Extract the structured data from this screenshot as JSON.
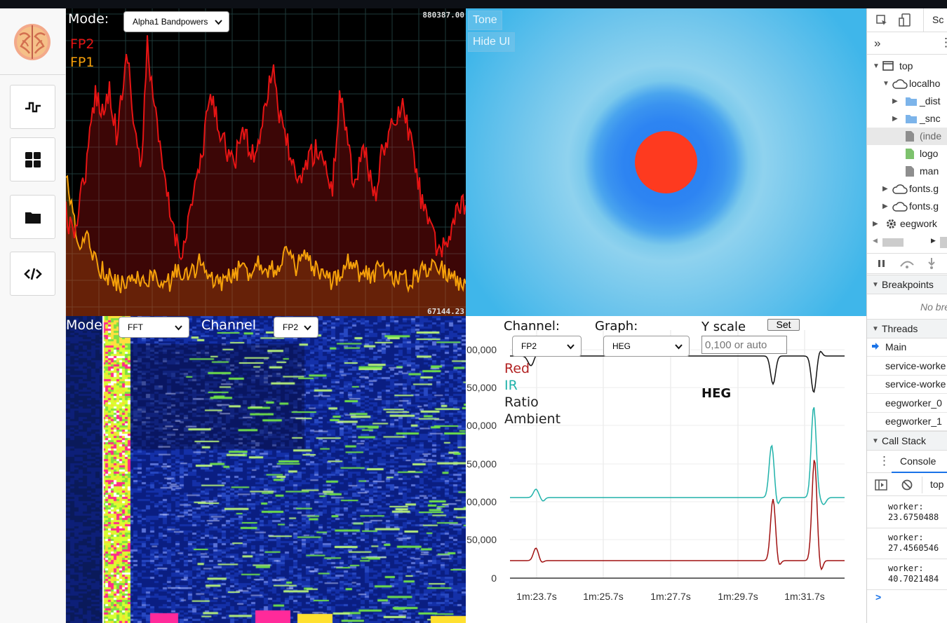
{
  "sidebar": {
    "buttons": [
      "signal",
      "dashboard",
      "folder",
      "code"
    ]
  },
  "eeg_panel": {
    "mode_label": "Mode:",
    "mode_value": "Alpha1 Bandpowers",
    "legend": [
      {
        "name": "FP2",
        "color": "#e61414"
      },
      {
        "name": "FP1",
        "color": "#f5a00a"
      }
    ],
    "max_value": "880387.00",
    "min_value": "67144.23"
  },
  "visual_panel": {
    "tone_button": "Tone",
    "hide_ui_button": "Hide UI"
  },
  "spectrogram_panel": {
    "mode_label": "Mode",
    "mode_value": "FFT",
    "channel_label": "Channel",
    "channel_value": "FP2"
  },
  "heg_panel": {
    "channel_label": "Channel:",
    "channel_value": "FP2",
    "graph_label": "Graph:",
    "graph_value": "HEG",
    "yscale_label": "Y scale",
    "set_button": "Set",
    "yscale_placeholder": "0,100 or auto",
    "title": "HEG",
    "legend": [
      {
        "name": "Red",
        "color": "#b22222"
      },
      {
        "name": "IR",
        "color": "#20b2aa"
      },
      {
        "name": "Ratio",
        "color": "#222222"
      },
      {
        "name": "Ambient",
        "color": "#222222"
      }
    ],
    "y_ticks": [
      "00,000",
      "50,000",
      "00,000",
      "50,000",
      "00,000",
      "50,000",
      "0"
    ],
    "x_ticks": [
      "1m:23.7s",
      "1m:25.7s",
      "1m:27.7s",
      "1m:29.7s",
      "1m:31.7s"
    ]
  },
  "devtools": {
    "tab_sources": "Sc",
    "tree": [
      {
        "label": "top",
        "icon": "frame-icon"
      },
      {
        "label": "localho",
        "icon": "cloud-icon"
      },
      {
        "label": "_dist",
        "icon": "folder-icon"
      },
      {
        "label": "_snc",
        "icon": "folder-icon"
      },
      {
        "label": "(inde",
        "icon": "file-icon"
      },
      {
        "label": "logo",
        "icon": "file-icon"
      },
      {
        "label": "man",
        "icon": "file-icon"
      },
      {
        "label": "fonts.g",
        "icon": "cloud-icon"
      },
      {
        "label": "fonts.g",
        "icon": "cloud-icon"
      },
      {
        "label": "eegwork",
        "icon": "gear-icon"
      }
    ],
    "breakpoints_label": "Breakpoints",
    "no_breakpoints": "No bre",
    "threads_label": "Threads",
    "threads": [
      "Main",
      "service-worke",
      "service-worke",
      "eegworker_0",
      "eegworker_1"
    ],
    "call_stack_label": "Call Stack",
    "console_tab": "Console",
    "console_context": "top",
    "console_lines": [
      {
        "label": "worker:",
        "value": "23.6750488"
      },
      {
        "label": "worker:",
        "value": "27.4560546"
      },
      {
        "label": "worker:",
        "value": "40.7021484"
      }
    ],
    "prompt": ">"
  }
}
